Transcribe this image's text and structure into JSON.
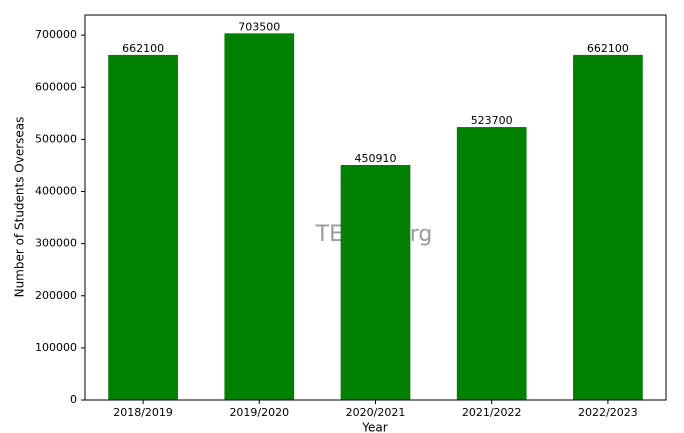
{
  "chart_data": {
    "type": "bar",
    "categories": [
      "2018/2019",
      "2019/2020",
      "2020/2021",
      "2021/2022",
      "2022/2023"
    ],
    "values": [
      662100,
      703500,
      450910,
      523700,
      662100
    ],
    "color": "#008000",
    "xlabel": "Year",
    "ylabel": "Number of Students Overseas",
    "watermark": "TEssay.org",
    "ylim": [
      0,
      738675
    ],
    "yticks": [
      0,
      100000,
      200000,
      300000,
      400000,
      500000,
      600000,
      700000
    ],
    "grid": false
  }
}
